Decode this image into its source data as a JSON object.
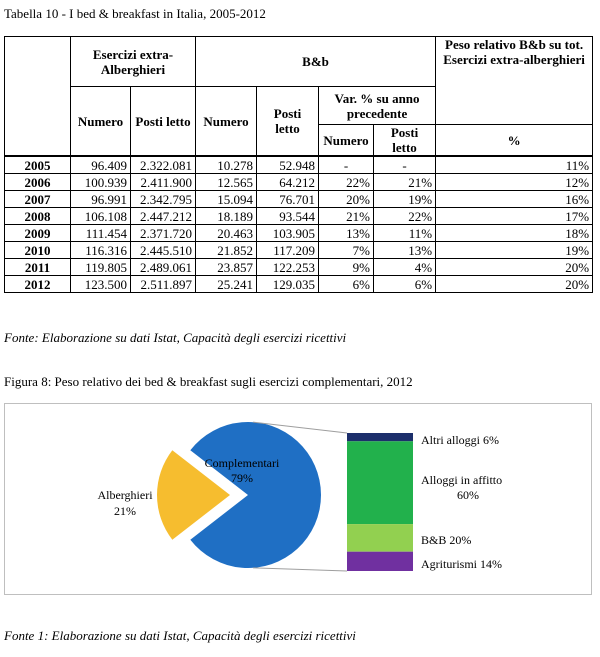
{
  "table_caption": "Tabella 10 - I bed & breakfast in Italia, 2005-2012",
  "table": {
    "headers": {
      "extra": "Esercizi extra-Alberghieri",
      "bb": "B&b",
      "peso": "Peso relativo B&b su tot. Esercizi extra-alberghieri",
      "numero": "Numero",
      "posti_letto": "Posti letto",
      "var": "Var. % su anno precedente",
      "var_numero": "Numero",
      "var_posti": "Posti letto",
      "percent": "%"
    },
    "rows": [
      {
        "year": "2005",
        "extra_numero": "96.409",
        "extra_posti": "2.322.081",
        "bb_numero": "10.278",
        "bb_posti": "52.948",
        "var_numero": "-",
        "var_posti": "-",
        "peso": "11%"
      },
      {
        "year": "2006",
        "extra_numero": "100.939",
        "extra_posti": "2.411.900",
        "bb_numero": "12.565",
        "bb_posti": "64.212",
        "var_numero": "22%",
        "var_posti": "21%",
        "peso": "12%"
      },
      {
        "year": "2007",
        "extra_numero": "96.991",
        "extra_posti": "2.342.795",
        "bb_numero": "15.094",
        "bb_posti": "76.701",
        "var_numero": "20%",
        "var_posti": "19%",
        "peso": "16%"
      },
      {
        "year": "2008",
        "extra_numero": "106.108",
        "extra_posti": "2.447.212",
        "bb_numero": "18.189",
        "bb_posti": "93.544",
        "var_numero": "21%",
        "var_posti": "22%",
        "peso": "17%"
      },
      {
        "year": "2009",
        "extra_numero": "111.454",
        "extra_posti": "2.371.720",
        "bb_numero": "20.463",
        "bb_posti": "103.905",
        "var_numero": "13%",
        "var_posti": "11%",
        "peso": "18%"
      },
      {
        "year": "2010",
        "extra_numero": "116.316",
        "extra_posti": "2.445.510",
        "bb_numero": "21.852",
        "bb_posti": "117.209",
        "var_numero": "7%",
        "var_posti": "13%",
        "peso": "19%"
      },
      {
        "year": "2011",
        "extra_numero": "119.805",
        "extra_posti": "2.489.061",
        "bb_numero": "23.857",
        "bb_posti": "122.253",
        "var_numero": "9%",
        "var_posti": "4%",
        "peso": "20%"
      },
      {
        "year": "2012",
        "extra_numero": "123.500",
        "extra_posti": "2.511.897",
        "bb_numero": "25.241",
        "bb_posti": "129.035",
        "var_numero": "6%",
        "var_posti": "6%",
        "peso": "20%"
      }
    ]
  },
  "table_source": "Fonte: Elaborazione su dati Istat, Capacità degli esercizi ricettivi",
  "figure_caption": "Figura 8: Peso relativo dei bed & breakfast sugli esercizi complementari, 2012",
  "figure_source": "Fonte 1: Elaborazione su dati Istat, Capacità degli esercizi ricettivi",
  "chart_data": {
    "type": "pie",
    "pie": {
      "slices": [
        {
          "label": "Complementari",
          "pct_label": "79%",
          "value": 79,
          "color": "#1f6fc4"
        },
        {
          "label": "Alberghieri",
          "pct_label": "21%",
          "value": 21,
          "color": "#f6bd2f"
        }
      ]
    },
    "breakdown_bar": {
      "segments": [
        {
          "label": "Altri alloggi 6%",
          "value": 6,
          "color": "#1c2f6b"
        },
        {
          "label": "Alloggi in affitto 60%",
          "value": 60,
          "color": "#22b14c"
        },
        {
          "label": "B&B 20%",
          "value": 20,
          "color": "#92d050"
        },
        {
          "label": "Agriturismi 14%",
          "value": 14,
          "color": "#7030a0"
        }
      ]
    },
    "connector_color": "#9e9e9e"
  }
}
